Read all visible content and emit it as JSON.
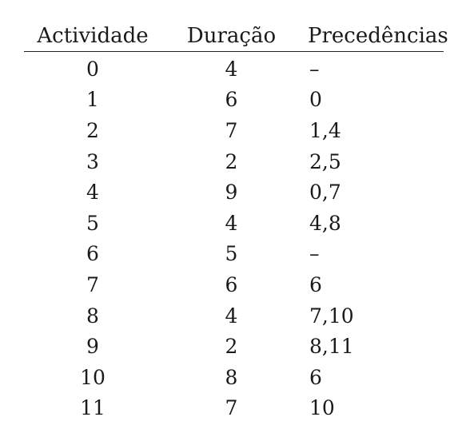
{
  "table": {
    "headers": [
      "Actividade",
      "Duração",
      "Precedências"
    ],
    "rows": [
      {
        "actividade": "0",
        "duracao": "4",
        "precedencias": "–"
      },
      {
        "actividade": "1",
        "duracao": "6",
        "precedencias": "0"
      },
      {
        "actividade": "2",
        "duracao": "7",
        "precedencias": "1,4"
      },
      {
        "actividade": "3",
        "duracao": "2",
        "precedencias": "2,5"
      },
      {
        "actividade": "4",
        "duracao": "9",
        "precedencias": "0,7"
      },
      {
        "actividade": "5",
        "duracao": "4",
        "precedencias": "4,8"
      },
      {
        "actividade": "6",
        "duracao": "5",
        "precedencias": "–"
      },
      {
        "actividade": "7",
        "duracao": "6",
        "precedencias": "6"
      },
      {
        "actividade": "8",
        "duracao": "4",
        "precedencias": "7,10"
      },
      {
        "actividade": "9",
        "duracao": "2",
        "precedencias": "8,11"
      },
      {
        "actividade": "10",
        "duracao": "8",
        "precedencias": "6"
      },
      {
        "actividade": "11",
        "duracao": "7",
        "precedencias": "10"
      }
    ]
  }
}
